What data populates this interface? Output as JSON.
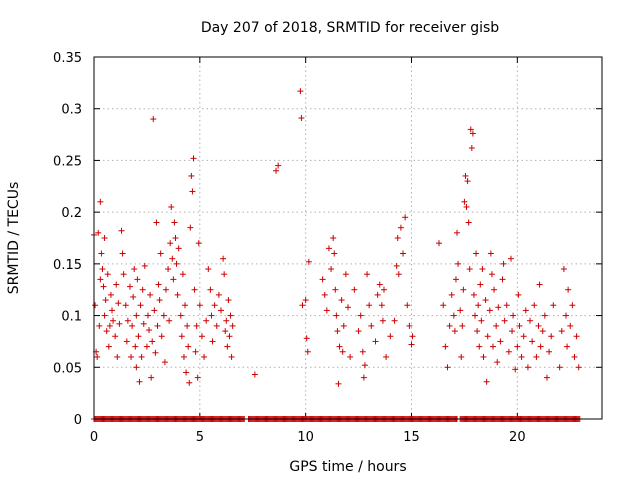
{
  "chart_data": {
    "type": "scatter",
    "title": "Day 207 of 2018, SRMTID for receiver gisb",
    "xlabel": "GPS time / hours",
    "ylabel": "SRMTID / TECUs",
    "xlim": [
      0,
      24
    ],
    "ylim": [
      0,
      0.35
    ],
    "xticks": [
      0,
      5,
      10,
      15,
      20
    ],
    "xtick_labels": [
      "0",
      "5",
      "10",
      "15",
      "20"
    ],
    "yticks": [
      0,
      0.05,
      0.1,
      0.15,
      0.2,
      0.25,
      0.3,
      0.35
    ],
    "ytick_labels": [
      "0",
      "0.05",
      "0.1",
      "0.15",
      "0.2",
      "0.25",
      "0.3",
      "0.35"
    ],
    "grid": true,
    "marker": "plus",
    "colors": {
      "series": "#cc0000"
    },
    "series": [
      {
        "values_note_free": true,
        "points": [
          [
            0.0,
            0.178
          ],
          [
            0.05,
            0.11
          ],
          [
            0.1,
            0.065
          ],
          [
            0.15,
            0.06
          ],
          [
            0.2,
            0.18
          ],
          [
            0.25,
            0.09
          ],
          [
            0.3,
            0.135
          ],
          [
            0.3,
            0.21
          ],
          [
            0.35,
            0.16
          ],
          [
            0.4,
            0.145
          ],
          [
            0.45,
            0.128
          ],
          [
            0.5,
            0.1
          ],
          [
            0.5,
            0.175
          ],
          [
            0.55,
            0.115
          ],
          [
            0.6,
            0.085
          ],
          [
            0.65,
            0.14
          ],
          [
            0.7,
            0.07
          ],
          [
            0.75,
            0.09
          ],
          [
            0.8,
            0.12
          ],
          [
            0.85,
            0.105
          ],
          [
            0.9,
            0.095
          ],
          [
            1.0,
            0.08
          ],
          [
            1.05,
            0.13
          ],
          [
            1.1,
            0.06
          ],
          [
            1.15,
            0.112
          ],
          [
            1.2,
            0.092
          ],
          [
            1.3,
            0.182
          ],
          [
            1.35,
            0.16
          ],
          [
            1.4,
            0.14
          ],
          [
            1.5,
            0.11
          ],
          [
            1.55,
            0.075
          ],
          [
            1.6,
            0.095
          ],
          [
            1.7,
            0.128
          ],
          [
            1.75,
            0.06
          ],
          [
            1.8,
            0.09
          ],
          [
            1.85,
            0.118
          ],
          [
            1.9,
            0.145
          ],
          [
            1.95,
            0.07
          ],
          [
            2.0,
            0.1
          ],
          [
            2.0,
            0.05
          ],
          [
            2.05,
            0.135
          ],
          [
            2.1,
            0.08
          ],
          [
            2.15,
            0.036
          ],
          [
            2.2,
            0.11
          ],
          [
            2.25,
            0.06
          ],
          [
            2.3,
            0.125
          ],
          [
            2.35,
            0.092
          ],
          [
            2.4,
            0.148
          ],
          [
            2.5,
            0.07
          ],
          [
            2.55,
            0.1
          ],
          [
            2.6,
            0.086
          ],
          [
            2.65,
            0.12
          ],
          [
            2.7,
            0.04
          ],
          [
            2.75,
            0.075
          ],
          [
            2.8,
            0.29
          ],
          [
            2.85,
            0.105
          ],
          [
            2.9,
            0.064
          ],
          [
            2.95,
            0.19
          ],
          [
            3.0,
            0.09
          ],
          [
            3.05,
            0.13
          ],
          [
            3.1,
            0.115
          ],
          [
            3.15,
            0.16
          ],
          [
            3.2,
            0.08
          ],
          [
            3.3,
            0.1
          ],
          [
            3.35,
            0.055
          ],
          [
            3.4,
            0.125
          ],
          [
            3.5,
            0.145
          ],
          [
            3.55,
            0.095
          ],
          [
            3.6,
            0.17
          ],
          [
            3.65,
            0.205
          ],
          [
            3.7,
            0.155
          ],
          [
            3.75,
            0.135
          ],
          [
            3.8,
            0.19
          ],
          [
            3.85,
            0.175
          ],
          [
            3.9,
            0.15
          ],
          [
            3.95,
            0.12
          ],
          [
            4.0,
            0.165
          ],
          [
            4.1,
            0.1
          ],
          [
            4.15,
            0.08
          ],
          [
            4.2,
            0.14
          ],
          [
            4.25,
            0.06
          ],
          [
            4.3,
            0.11
          ],
          [
            4.35,
            0.045
          ],
          [
            4.4,
            0.09
          ],
          [
            4.45,
            0.07
          ],
          [
            4.5,
            0.035
          ],
          [
            4.55,
            0.185
          ],
          [
            4.6,
            0.235
          ],
          [
            4.65,
            0.22
          ],
          [
            4.7,
            0.252
          ],
          [
            4.75,
            0.125
          ],
          [
            4.8,
            0.065
          ],
          [
            4.85,
            0.09
          ],
          [
            4.9,
            0.04
          ],
          [
            4.95,
            0.17
          ],
          [
            5.0,
            0.11
          ],
          [
            5.1,
            0.08
          ],
          [
            5.2,
            0.06
          ],
          [
            5.3,
            0.095
          ],
          [
            5.4,
            0.145
          ],
          [
            5.5,
            0.125
          ],
          [
            5.55,
            0.1
          ],
          [
            5.6,
            0.075
          ],
          [
            5.7,
            0.11
          ],
          [
            5.8,
            0.09
          ],
          [
            5.9,
            0.12
          ],
          [
            6.0,
            0.105
          ],
          [
            6.1,
            0.155
          ],
          [
            6.15,
            0.14
          ],
          [
            6.2,
            0.085
          ],
          [
            6.25,
            0.095
          ],
          [
            6.3,
            0.07
          ],
          [
            6.35,
            0.115
          ],
          [
            6.4,
            0.08
          ],
          [
            6.45,
            0.1
          ],
          [
            6.5,
            0.06
          ],
          [
            6.55,
            0.09
          ],
          [
            7.6,
            0.043
          ],
          [
            8.6,
            0.24
          ],
          [
            8.7,
            0.245
          ],
          [
            9.75,
            0.317
          ],
          [
            9.8,
            0.291
          ],
          [
            9.85,
            0.11
          ],
          [
            10.0,
            0.115
          ],
          [
            10.05,
            0.078
          ],
          [
            10.1,
            0.065
          ],
          [
            10.15,
            0.152
          ],
          [
            10.8,
            0.135
          ],
          [
            10.9,
            0.12
          ],
          [
            11.0,
            0.105
          ],
          [
            11.1,
            0.165
          ],
          [
            11.2,
            0.145
          ],
          [
            11.3,
            0.175
          ],
          [
            11.35,
            0.16
          ],
          [
            11.4,
            0.125
          ],
          [
            11.45,
            0.1
          ],
          [
            11.5,
            0.085
          ],
          [
            11.55,
            0.034
          ],
          [
            11.6,
            0.07
          ],
          [
            11.7,
            0.115
          ],
          [
            11.75,
            0.065
          ],
          [
            11.8,
            0.09
          ],
          [
            11.9,
            0.14
          ],
          [
            12.0,
            0.108
          ],
          [
            12.1,
            0.06
          ],
          [
            12.3,
            0.125
          ],
          [
            12.5,
            0.085
          ],
          [
            12.6,
            0.1
          ],
          [
            12.7,
            0.065
          ],
          [
            12.75,
            0.04
          ],
          [
            12.8,
            0.052
          ],
          [
            12.9,
            0.14
          ],
          [
            13.0,
            0.11
          ],
          [
            13.1,
            0.09
          ],
          [
            13.3,
            0.075
          ],
          [
            13.4,
            0.12
          ],
          [
            13.5,
            0.13
          ],
          [
            13.6,
            0.11
          ],
          [
            13.65,
            0.095
          ],
          [
            13.7,
            0.125
          ],
          [
            13.8,
            0.06
          ],
          [
            14.0,
            0.08
          ],
          [
            14.2,
            0.095
          ],
          [
            14.3,
            0.148
          ],
          [
            14.35,
            0.175
          ],
          [
            14.4,
            0.14
          ],
          [
            14.5,
            0.185
          ],
          [
            14.6,
            0.16
          ],
          [
            14.7,
            0.195
          ],
          [
            14.8,
            0.11
          ],
          [
            14.9,
            0.09
          ],
          [
            15.0,
            0.072
          ],
          [
            15.05,
            0.08
          ],
          [
            16.3,
            0.17
          ],
          [
            16.5,
            0.11
          ],
          [
            16.6,
            0.07
          ],
          [
            16.7,
            0.05
          ],
          [
            16.8,
            0.09
          ],
          [
            16.9,
            0.12
          ],
          [
            17.0,
            0.1
          ],
          [
            17.05,
            0.085
          ],
          [
            17.1,
            0.135
          ],
          [
            17.15,
            0.18
          ],
          [
            17.2,
            0.15
          ],
          [
            17.3,
            0.105
          ],
          [
            17.35,
            0.06
          ],
          [
            17.4,
            0.09
          ],
          [
            17.45,
            0.125
          ],
          [
            17.5,
            0.21
          ],
          [
            17.55,
            0.235
          ],
          [
            17.6,
            0.205
          ],
          [
            17.65,
            0.23
          ],
          [
            17.7,
            0.19
          ],
          [
            17.75,
            0.145
          ],
          [
            17.8,
            0.28
          ],
          [
            17.85,
            0.262
          ],
          [
            17.9,
            0.276
          ],
          [
            17.95,
            0.12
          ],
          [
            18.0,
            0.1
          ],
          [
            18.05,
            0.16
          ],
          [
            18.1,
            0.085
          ],
          [
            18.15,
            0.11
          ],
          [
            18.2,
            0.07
          ],
          [
            18.25,
            0.13
          ],
          [
            18.3,
            0.095
          ],
          [
            18.35,
            0.145
          ],
          [
            18.4,
            0.06
          ],
          [
            18.5,
            0.115
          ],
          [
            18.55,
            0.036
          ],
          [
            18.6,
            0.08
          ],
          [
            18.7,
            0.105
          ],
          [
            18.75,
            0.16
          ],
          [
            18.8,
            0.14
          ],
          [
            18.85,
            0.07
          ],
          [
            18.9,
            0.125
          ],
          [
            19.0,
            0.09
          ],
          [
            19.05,
            0.055
          ],
          [
            19.1,
            0.108
          ],
          [
            19.2,
            0.075
          ],
          [
            19.3,
            0.135
          ],
          [
            19.35,
            0.15
          ],
          [
            19.4,
            0.095
          ],
          [
            19.5,
            0.11
          ],
          [
            19.6,
            0.065
          ],
          [
            19.7,
            0.155
          ],
          [
            19.75,
            0.085
          ],
          [
            19.8,
            0.1
          ],
          [
            19.9,
            0.048
          ],
          [
            20.0,
            0.07
          ],
          [
            20.05,
            0.12
          ],
          [
            20.1,
            0.09
          ],
          [
            20.2,
            0.06
          ],
          [
            20.3,
            0.08
          ],
          [
            20.4,
            0.105
          ],
          [
            20.5,
            0.05
          ],
          [
            20.6,
            0.095
          ],
          [
            20.7,
            0.075
          ],
          [
            20.8,
            0.11
          ],
          [
            20.9,
            0.06
          ],
          [
            21.0,
            0.09
          ],
          [
            21.05,
            0.13
          ],
          [
            21.1,
            0.07
          ],
          [
            21.2,
            0.085
          ],
          [
            21.3,
            0.1
          ],
          [
            21.4,
            0.04
          ],
          [
            21.5,
            0.065
          ],
          [
            21.6,
            0.08
          ],
          [
            21.7,
            0.11
          ],
          [
            22.0,
            0.05
          ],
          [
            22.1,
            0.085
          ],
          [
            22.2,
            0.145
          ],
          [
            22.3,
            0.1
          ],
          [
            22.35,
            0.07
          ],
          [
            22.4,
            0.125
          ],
          [
            22.5,
            0.09
          ],
          [
            22.6,
            0.11
          ],
          [
            22.7,
            0.06
          ],
          [
            22.8,
            0.08
          ],
          [
            22.9,
            0.05
          ]
        ],
        "zero_ranges_hours": [
          [
            0,
            7.1
          ],
          [
            7.3,
            17.2
          ],
          [
            17.3,
            23
          ]
        ]
      }
    ]
  }
}
